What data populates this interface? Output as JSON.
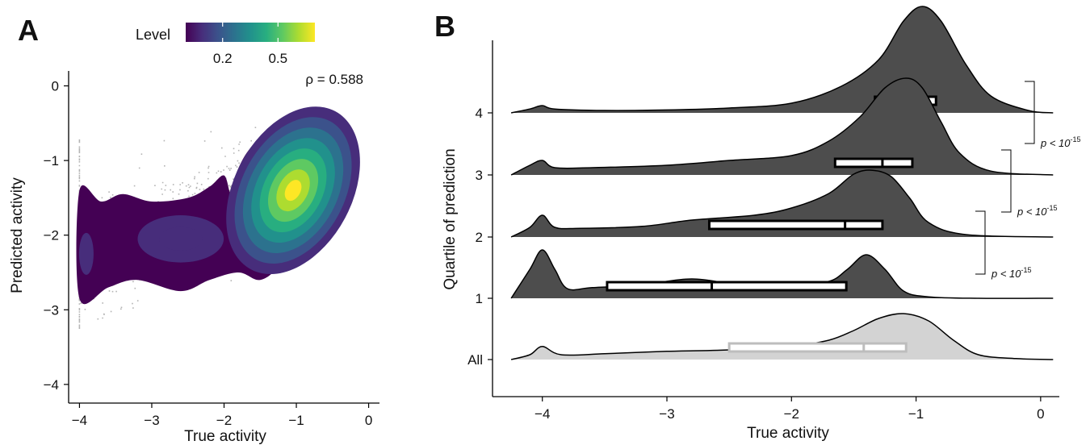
{
  "chart_data": [
    {
      "panel": "A",
      "type": "heatmap",
      "subtype": "2d-density-contour-over-scatter",
      "xlabel": "True activity",
      "ylabel": "Predicted activity",
      "xlim": [
        -4.15,
        0.15
      ],
      "ylim": [
        -4.25,
        0.2
      ],
      "xticks": [
        -4,
        -3,
        -2,
        -1,
        0
      ],
      "yticks": [
        0,
        -1,
        -2,
        -3,
        -4
      ],
      "annotation": "ρ = 0.588",
      "legend": {
        "title": "Level",
        "placement": "top",
        "ticks": [
          0.2,
          0.5
        ],
        "range": [
          0.0,
          0.7
        ],
        "palette": [
          "#440154",
          "#472d7b",
          "#3b528b",
          "#2c728e",
          "#21918c",
          "#28ae80",
          "#5ec962",
          "#addc30",
          "#fde725"
        ]
      },
      "density_peaks": [
        {
          "x": -1.0,
          "y": -1.4,
          "level": 0.7
        },
        {
          "x": -2.6,
          "y": -2.05,
          "level": 0.2
        },
        {
          "x": -3.95,
          "y": -2.25,
          "level": 0.15
        }
      ],
      "outer_contour": [
        [
          -4.0,
          -1.4
        ],
        [
          -3.7,
          -1.55
        ],
        [
          -3.4,
          -1.45
        ],
        [
          -3.0,
          -1.55
        ],
        [
          -2.5,
          -1.5
        ],
        [
          -2.2,
          -1.35
        ],
        [
          -2.0,
          -1.2
        ],
        [
          -1.9,
          -1.45
        ],
        [
          -1.8,
          -1.1
        ],
        [
          -1.6,
          -0.8
        ],
        [
          -1.3,
          -0.68
        ],
        [
          -0.9,
          -0.6
        ],
        [
          -0.6,
          -0.6
        ],
        [
          -0.4,
          -0.75
        ],
        [
          -0.3,
          -1.1
        ],
        [
          -0.45,
          -1.6
        ],
        [
          -0.75,
          -2.0
        ],
        [
          -1.2,
          -2.4
        ],
        [
          -1.5,
          -2.6
        ],
        [
          -1.8,
          -2.5
        ],
        [
          -2.2,
          -2.6
        ],
        [
          -2.6,
          -2.75
        ],
        [
          -3.2,
          -2.6
        ],
        [
          -3.6,
          -2.7
        ],
        [
          -4.0,
          -2.85
        ]
      ]
    },
    {
      "panel": "B",
      "type": "area",
      "subtype": "ridgeline-density-with-boxplots",
      "xlabel": "True activity",
      "ylabel": "Quartile of prediction",
      "xlim": [
        -4.4,
        0.15
      ],
      "xticks": [
        -4,
        -3,
        -2,
        -1,
        0
      ],
      "categories": [
        "All",
        "1",
        "2",
        "3",
        "4"
      ],
      "series": [
        {
          "name": "All",
          "fill": "#d3d3d3",
          "density_x": [
            -4.25,
            -4.1,
            -4.0,
            -3.85,
            -3.5,
            -3.0,
            -2.5,
            -2.0,
            -1.7,
            -1.5,
            -1.3,
            -1.1,
            -0.9,
            -0.7,
            -0.5,
            -0.2,
            0.1
          ],
          "density_y": [
            0.0,
            0.1,
            0.27,
            0.1,
            0.12,
            0.17,
            0.2,
            0.28,
            0.4,
            0.6,
            0.85,
            0.95,
            0.8,
            0.4,
            0.1,
            0.02,
            0.0
          ],
          "box": {
            "q1": -2.5,
            "median": -1.42,
            "q3": -1.08
          }
        },
        {
          "name": "1",
          "fill": "#4d4d4d",
          "density_x": [
            -4.25,
            -4.1,
            -4.0,
            -3.9,
            -3.8,
            -3.6,
            -3.2,
            -2.8,
            -2.4,
            -2.0,
            -1.7,
            -1.55,
            -1.4,
            -1.25,
            -1.1,
            -0.9,
            -0.5,
            0.1
          ],
          "density_y": [
            0.0,
            0.6,
            1.0,
            0.6,
            0.2,
            0.22,
            0.28,
            0.4,
            0.28,
            0.3,
            0.35,
            0.6,
            0.9,
            0.6,
            0.15,
            0.03,
            0.0,
            0.0
          ],
          "box": {
            "q1": -3.48,
            "median": -2.64,
            "q3": -1.56
          }
        },
        {
          "name": "2",
          "fill": "#4d4d4d",
          "density_x": [
            -4.25,
            -4.1,
            -4.0,
            -3.9,
            -3.7,
            -3.2,
            -2.8,
            -2.3,
            -2.0,
            -1.7,
            -1.5,
            -1.35,
            -1.2,
            -1.05,
            -0.9,
            -0.6,
            0.1
          ],
          "density_y": [
            0.0,
            0.2,
            0.45,
            0.2,
            0.18,
            0.22,
            0.35,
            0.45,
            0.6,
            0.9,
            1.3,
            1.38,
            1.25,
            0.8,
            0.3,
            0.05,
            0.0
          ],
          "box": {
            "q1": -2.66,
            "median": -1.57,
            "q3": -1.27
          }
        },
        {
          "name": "3",
          "fill": "#4d4d4d",
          "density_x": [
            -4.25,
            -4.1,
            -4.0,
            -3.9,
            -3.6,
            -3.0,
            -2.5,
            -2.0,
            -1.7,
            -1.45,
            -1.25,
            -1.08,
            -0.95,
            -0.8,
            -0.65,
            -0.4,
            0.1
          ],
          "density_y": [
            0.0,
            0.2,
            0.3,
            0.15,
            0.15,
            0.2,
            0.3,
            0.4,
            0.7,
            1.2,
            1.8,
            2.0,
            1.8,
            1.1,
            0.45,
            0.08,
            0.0
          ],
          "box": {
            "q1": -1.65,
            "median": -1.27,
            "q3": -1.03
          }
        },
        {
          "name": "4",
          "fill": "#4d4d4d",
          "density_x": [
            -4.25,
            -4.1,
            -4.0,
            -3.9,
            -3.5,
            -3.0,
            -2.5,
            -2.0,
            -1.6,
            -1.3,
            -1.1,
            -0.95,
            -0.8,
            -0.6,
            -0.4,
            -0.1,
            0.1
          ],
          "density_y": [
            0.0,
            0.08,
            0.15,
            0.08,
            0.05,
            0.06,
            0.1,
            0.2,
            0.55,
            1.1,
            1.9,
            2.2,
            1.9,
            1.0,
            0.35,
            0.05,
            0.0
          ],
          "box": {
            "q1": -1.33,
            "median": -1.05,
            "q3": -0.84
          }
        }
      ],
      "comparisons": [
        {
          "between": [
            "1",
            "2"
          ],
          "label_base": "p < 10",
          "label_exp": "-15"
        },
        {
          "between": [
            "2",
            "3"
          ],
          "label_base": "p < 10",
          "label_exp": "-15"
        },
        {
          "between": [
            "3",
            "4"
          ],
          "label_base": "p < 10",
          "label_exp": "-15"
        }
      ]
    }
  ]
}
